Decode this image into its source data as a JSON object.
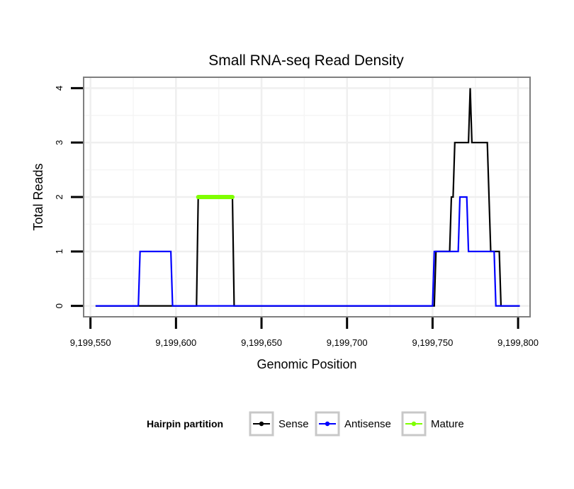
{
  "chart_data": {
    "type": "line",
    "title": "Small RNA-seq Read Density",
    "xlabel": "Genomic Position",
    "ylabel": "Total Reads",
    "xlim": [
      9199546,
      9199807
    ],
    "ylim": [
      -0.2,
      4.2
    ],
    "x_ticks": [
      9199550,
      9199600,
      9199650,
      9199700,
      9199750,
      9199800
    ],
    "x_tick_labels": [
      "9,199,550",
      "9,199,600",
      "9,199,650",
      "9,199,700",
      "9,199,750",
      "9,199,800"
    ],
    "y_ticks": [
      0,
      1,
      2,
      3,
      4
    ],
    "y_tick_labels": [
      "0",
      "1",
      "2",
      "3",
      "4"
    ],
    "grid": true,
    "legend": {
      "title": "Hairpin partition",
      "position": "bottom",
      "entries": [
        {
          "name": "Sense",
          "color": "#000000"
        },
        {
          "name": "Antisense",
          "color": "#0000ff"
        },
        {
          "name": "Mature",
          "color": "#7fff00"
        }
      ]
    },
    "series": [
      {
        "name": "Sense",
        "color": "#000000",
        "points": [
          [
            9199553,
            0
          ],
          [
            9199612,
            0
          ],
          [
            9199613,
            2
          ],
          [
            9199633,
            2
          ],
          [
            9199634,
            0
          ],
          [
            9199751,
            0
          ],
          [
            9199752,
            1
          ],
          [
            9199760,
            1
          ],
          [
            9199761,
            2
          ],
          [
            9199762,
            2
          ],
          [
            9199763,
            3
          ],
          [
            9199771,
            3
          ],
          [
            9199772,
            4
          ],
          [
            9199773,
            3
          ],
          [
            9199782,
            3
          ],
          [
            9199783,
            2
          ],
          [
            9199784,
            1
          ],
          [
            9199789,
            1
          ],
          [
            9199790,
            0
          ],
          [
            9199801,
            0
          ]
        ]
      },
      {
        "name": "Antisense",
        "color": "#0000ff",
        "points": [
          [
            9199553,
            0
          ],
          [
            9199578,
            0
          ],
          [
            9199579,
            1
          ],
          [
            9199597,
            1
          ],
          [
            9199598,
            0
          ],
          [
            9199750,
            0
          ],
          [
            9199751,
            1
          ],
          [
            9199765,
            1
          ],
          [
            9199766,
            2
          ],
          [
            9199770,
            2
          ],
          [
            9199771,
            1
          ],
          [
            9199786,
            1
          ],
          [
            9199787,
            0
          ],
          [
            9199801,
            0
          ]
        ]
      },
      {
        "name": "Mature",
        "color": "#7fff00",
        "points": [
          [
            9199613,
            2
          ],
          [
            9199633,
            2
          ]
        ]
      }
    ]
  }
}
